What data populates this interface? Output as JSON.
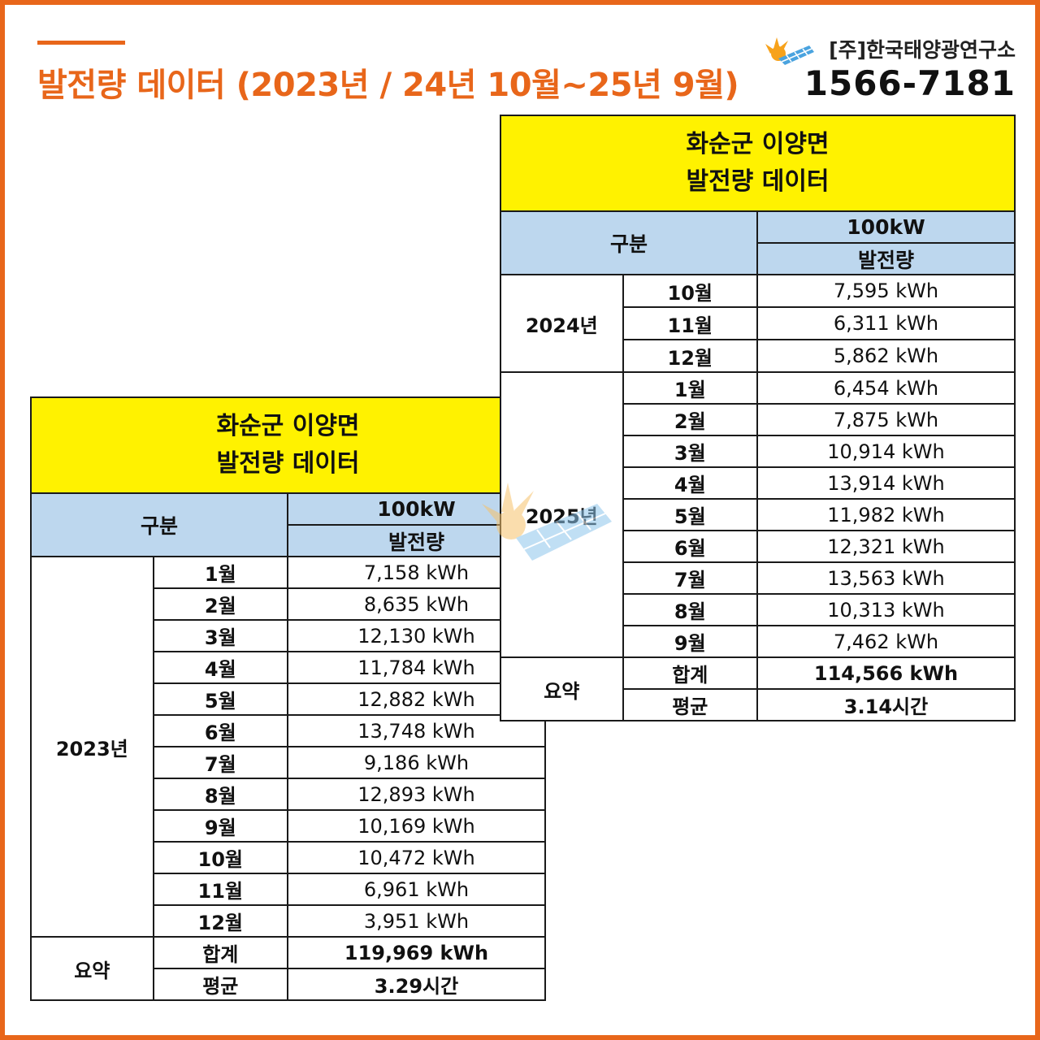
{
  "header": {
    "title": "발전량 데이터 (2023년 / 24년 10월~25년 9월)",
    "company": "[주]한국태양광연구소",
    "phone": "1566-7181"
  },
  "colors": {
    "accent": "#e8661a",
    "title_bg": "#fff200",
    "header_bg": "#bdd7ee",
    "highlight": "#e8151b"
  },
  "table_2023": {
    "title_line1": "화순군 이양면",
    "title_line2": "발전량 데이터",
    "col_category": "구분",
    "col_capacity": "100kW",
    "col_generation": "발전량",
    "year": "2023년",
    "rows": [
      {
        "month": "1월",
        "value": "7,158 kWh"
      },
      {
        "month": "2월",
        "value": "8,635 kWh"
      },
      {
        "month": "3월",
        "value": "12,130 kWh"
      },
      {
        "month": "4월",
        "value": "11,784 kWh"
      },
      {
        "month": "5월",
        "value": "12,882 kWh"
      },
      {
        "month": "6월",
        "value": "13,748 kWh"
      },
      {
        "month": "7월",
        "value": "9,186 kWh"
      },
      {
        "month": "8월",
        "value": "12,893 kWh"
      },
      {
        "month": "9월",
        "value": "10,169 kWh"
      },
      {
        "month": "10월",
        "value": "10,472 kWh"
      },
      {
        "month": "11월",
        "value": "6,961 kWh"
      },
      {
        "month": "12월",
        "value": "3,951 kWh"
      }
    ],
    "summary_label": "요약",
    "total_label": "합계",
    "total_value": "119,969 kWh",
    "avg_label": "평균",
    "avg_value": "3.29시간"
  },
  "table_2024": {
    "title_line1": "화순군 이양면",
    "title_line2": "발전량 데이터",
    "col_category": "구분",
    "col_capacity": "100kW",
    "col_generation": "발전량",
    "year_a": "2024년",
    "rows_a": [
      {
        "month": "10월",
        "value": "7,595 kWh"
      },
      {
        "month": "11월",
        "value": "6,311 kWh"
      },
      {
        "month": "12월",
        "value": "5,862 kWh"
      }
    ],
    "year_b": "2025년",
    "rows_b": [
      {
        "month": "1월",
        "value": "6,454 kWh"
      },
      {
        "month": "2월",
        "value": "7,875 kWh"
      },
      {
        "month": "3월",
        "value": "10,914 kWh"
      },
      {
        "month": "4월",
        "value": "13,914 kWh"
      },
      {
        "month": "5월",
        "value": "11,982 kWh"
      },
      {
        "month": "6월",
        "value": "12,321 kWh"
      },
      {
        "month": "7월",
        "value": "13,563 kWh"
      },
      {
        "month": "8월",
        "value": "10,313 kWh"
      },
      {
        "month": "9월",
        "value": "7,462 kWh"
      }
    ],
    "summary_label": "요약",
    "total_label": "합계",
    "total_value": "114,566 kWh",
    "avg_label": "평균",
    "avg_value": "3.14시간"
  }
}
